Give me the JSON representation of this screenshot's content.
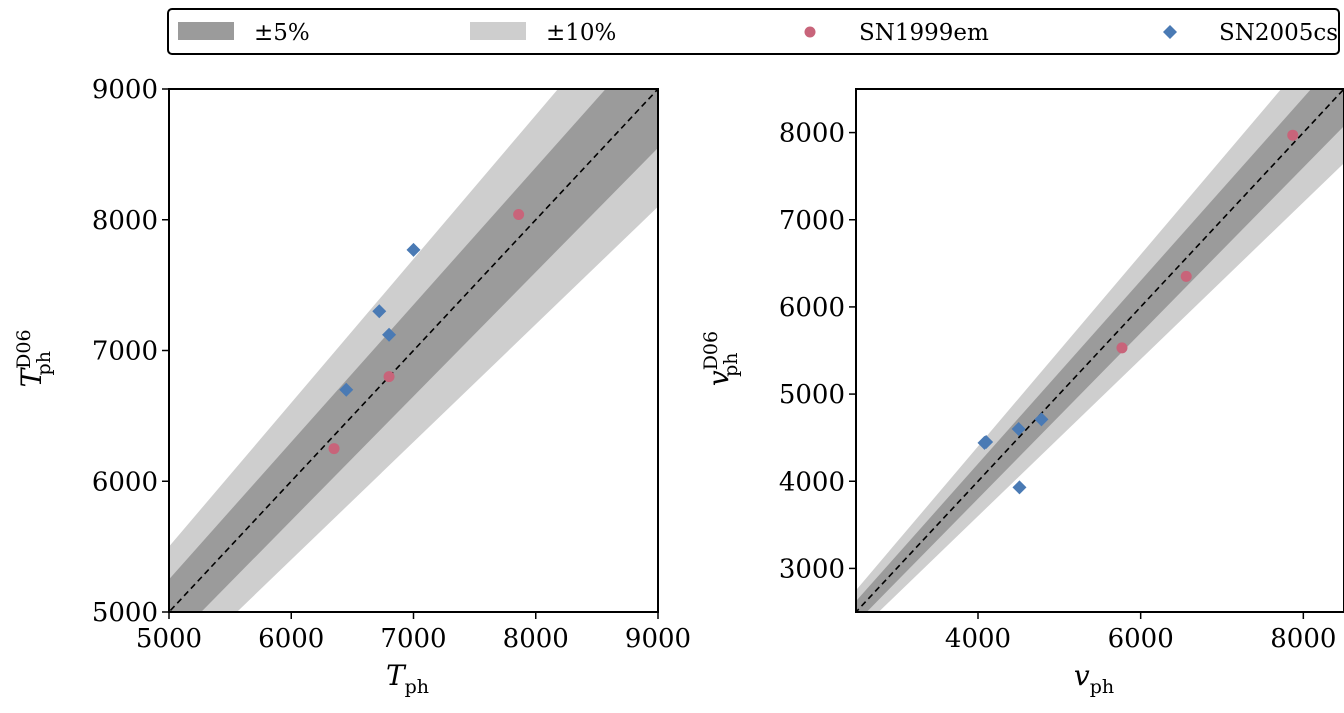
{
  "legend": {
    "items": [
      {
        "label": "±5%",
        "kind": "band",
        "color": "#9b9b9b"
      },
      {
        "label": "±10%",
        "kind": "band",
        "color": "#cecece"
      },
      {
        "label": "SN1999em",
        "kind": "circle",
        "color": "#c8647a"
      },
      {
        "label": "SN2005cs",
        "kind": "diamond",
        "color": "#4a7ab4"
      }
    ],
    "placement": "top, above both panels"
  },
  "chart_data": [
    {
      "type": "scatter",
      "panel": "left",
      "xlabel": {
        "main": "T",
        "sub": "ph"
      },
      "ylabel": {
        "main": "T",
        "sub": "ph",
        "sup": "D06"
      },
      "xlim": [
        5000,
        9000
      ],
      "ylim": [
        5000,
        9000
      ],
      "xticks": [
        5000,
        6000,
        7000,
        8000,
        9000
      ],
      "yticks": [
        5000,
        6000,
        7000,
        8000,
        9000
      ],
      "grid": false,
      "reference_line": "y = x (dashed)",
      "bands": [
        {
          "name": "±10%",
          "fraction": 0.1,
          "color": "#cecece"
        },
        {
          "name": "±5%",
          "fraction": 0.05,
          "color": "#9b9b9b"
        }
      ],
      "series": [
        {
          "name": "SN1999em",
          "marker": "circle",
          "color": "#c8647a",
          "points": [
            [
              6350,
              6250
            ],
            [
              6800,
              6800
            ],
            [
              7860,
              8040
            ]
          ]
        },
        {
          "name": "SN2005cs",
          "marker": "diamond",
          "color": "#4a7ab4",
          "points": [
            [
              6450,
              6700
            ],
            [
              6720,
              7300
            ],
            [
              6800,
              7120
            ],
            [
              7000,
              7770
            ]
          ]
        }
      ]
    },
    {
      "type": "scatter",
      "panel": "right",
      "xlabel": {
        "main": "v",
        "sub": "ph"
      },
      "ylabel": {
        "main": "v",
        "sub": "ph",
        "sup": "D06"
      },
      "xlim": [
        2500,
        8500
      ],
      "ylim": [
        2500,
        8500
      ],
      "xticks": [
        4000,
        6000,
        8000
      ],
      "yticks": [
        3000,
        4000,
        5000,
        6000,
        7000,
        8000
      ],
      "grid": false,
      "reference_line": "y = x (dashed)",
      "bands": [
        {
          "name": "±10%",
          "fraction": 0.1,
          "color": "#cecece"
        },
        {
          "name": "±5%",
          "fraction": 0.05,
          "color": "#9b9b9b"
        }
      ],
      "series": [
        {
          "name": "SN1999em",
          "marker": "circle",
          "color": "#c8647a",
          "points": [
            [
              5770,
              5530
            ],
            [
              6560,
              6350
            ],
            [
              7870,
              7970
            ]
          ]
        },
        {
          "name": "SN2005cs",
          "marker": "diamond",
          "color": "#4a7ab4",
          "points": [
            [
              4080,
              4440
            ],
            [
              4100,
              4450
            ],
            [
              4500,
              4600
            ],
            [
              4780,
              4710
            ],
            [
              4510,
              3930
            ]
          ]
        }
      ]
    }
  ]
}
